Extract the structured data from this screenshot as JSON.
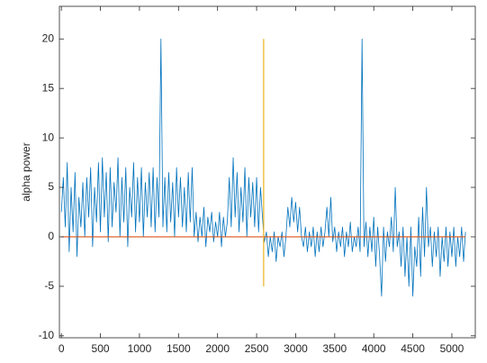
{
  "chart_data": {
    "type": "line",
    "ylabel": "alpha power",
    "xlim": [
      -25,
      5300
    ],
    "ylim": [
      -10.2,
      23.3
    ],
    "xticks": [
      0,
      500,
      1000,
      1500,
      2000,
      2500,
      3000,
      3500,
      4000,
      4500,
      5000
    ],
    "yticks": [
      -10,
      -5,
      0,
      5,
      10,
      15,
      20
    ],
    "box": true,
    "series": [
      {
        "color": "#0072bd",
        "x": [
          0,
          25,
          50,
          75,
          100,
          125,
          150,
          175,
          200,
          225,
          250,
          275,
          300,
          325,
          350,
          375,
          400,
          425,
          450,
          475,
          500,
          525,
          550,
          575,
          600,
          625,
          650,
          675,
          700,
          725,
          750,
          775,
          800,
          825,
          850,
          875,
          900,
          925,
          950,
          975,
          1000,
          1025,
          1050,
          1075,
          1100,
          1125,
          1150,
          1175,
          1200,
          1225,
          1250,
          1275,
          1300,
          1325,
          1350,
          1375,
          1400,
          1425,
          1450,
          1475,
          1500,
          1525,
          1550,
          1575,
          1600,
          1625,
          1650,
          1675,
          1700,
          1725,
          1750,
          1775,
          1800,
          1825,
          1850,
          1875,
          1900,
          1925,
          1950,
          1975,
          2000,
          2025,
          2050,
          2075,
          2100,
          2125,
          2150,
          2175,
          2200,
          2225,
          2250,
          2275,
          2300,
          2325,
          2350,
          2375,
          2400,
          2425,
          2450,
          2475,
          2500,
          2525,
          2550,
          2575,
          2600,
          2625,
          2650,
          2675,
          2700,
          2725,
          2750,
          2775,
          2800,
          2825,
          2850,
          2875,
          2900,
          2925,
          2950,
          2975,
          3000,
          3025,
          3050,
          3075,
          3100,
          3125,
          3150,
          3175,
          3200,
          3225,
          3250,
          3275,
          3300,
          3325,
          3350,
          3375,
          3400,
          3425,
          3450,
          3475,
          3500,
          3525,
          3550,
          3575,
          3600,
          3625,
          3650,
          3675,
          3700,
          3725,
          3750,
          3775,
          3800,
          3825,
          3850,
          3875,
          3900,
          3925,
          3950,
          3975,
          4000,
          4025,
          4050,
          4075,
          4100,
          4125,
          4150,
          4175,
          4200,
          4225,
          4250,
          4275,
          4300,
          4325,
          4350,
          4375,
          4400,
          4425,
          4450,
          4475,
          4500,
          4525,
          4550,
          4575,
          4600,
          4625,
          4650,
          4675,
          4700,
          4725,
          4750,
          4775,
          4800,
          4825,
          4850,
          4875,
          4900,
          4925,
          4950,
          4975,
          5000,
          5025,
          5050,
          5075,
          5100,
          5125,
          5150,
          5175
        ],
        "values": [
          2.5,
          6,
          1,
          7.5,
          -1.5,
          5,
          0.5,
          6.5,
          -2,
          4,
          1,
          5.5,
          0,
          6,
          2,
          7,
          -1,
          5,
          1.5,
          7.5,
          0.5,
          8,
          2,
          6.5,
          -0.5,
          7,
          1,
          5.5,
          2.5,
          8,
          0,
          6,
          1.5,
          7,
          -1,
          5,
          2,
          7.5,
          0.5,
          6,
          1.5,
          7,
          0,
          5.5,
          2,
          6.5,
          1,
          7,
          0.5,
          6,
          2,
          20,
          1,
          6,
          0.5,
          6.5,
          1.5,
          5.5,
          0,
          7,
          2,
          6,
          1,
          5,
          0.5,
          6.5,
          1.5,
          7,
          0,
          2.5,
          -0.5,
          2,
          0,
          3,
          -1,
          2,
          0.5,
          2.5,
          -0.5,
          1.5,
          0,
          2.5,
          -1,
          2,
          0,
          1.5,
          6,
          1,
          8,
          2,
          6.5,
          0.5,
          5,
          1.5,
          7,
          0,
          6,
          2,
          5.5,
          1,
          6,
          0.5,
          5,
          2,
          -0.5,
          0.5,
          -2,
          0,
          -1.5,
          0.5,
          -2.5,
          0,
          -1,
          0.5,
          -2,
          0,
          3,
          1,
          4,
          1.5,
          3.5,
          0.5,
          3,
          0,
          -1,
          1,
          -1.5,
          0.5,
          -1,
          1,
          -2,
          0.5,
          -1.5,
          1,
          -1,
          0.5,
          3,
          0,
          4,
          -0.5,
          1,
          -1.5,
          0.5,
          -1,
          1,
          -2,
          0.5,
          -1,
          1.5,
          -1.5,
          0,
          -1,
          1,
          -1.5,
          20,
          -1,
          1.5,
          -2,
          1,
          -1.5,
          2,
          -3,
          1,
          -2,
          -6,
          1,
          -2.5,
          0.5,
          -1,
          2,
          -1.5,
          5,
          -1,
          0.5,
          -3,
          1,
          -4,
          0,
          -5,
          1,
          -6,
          -1,
          -3,
          2,
          -4,
          3,
          -2,
          5,
          -1,
          1,
          -3,
          0.5,
          -2,
          1,
          -4,
          0,
          -2.5,
          1,
          -3,
          0.5,
          -2,
          1,
          -3,
          0,
          -2,
          1,
          -2.5,
          0.5
        ]
      },
      {
        "color": "#d95319",
        "x": [
          0,
          5175
        ],
        "values": [
          0,
          0
        ]
      },
      {
        "color": "#edb120",
        "x": [
          2590,
          2590
        ],
        "values": [
          -5,
          20
        ]
      }
    ]
  }
}
